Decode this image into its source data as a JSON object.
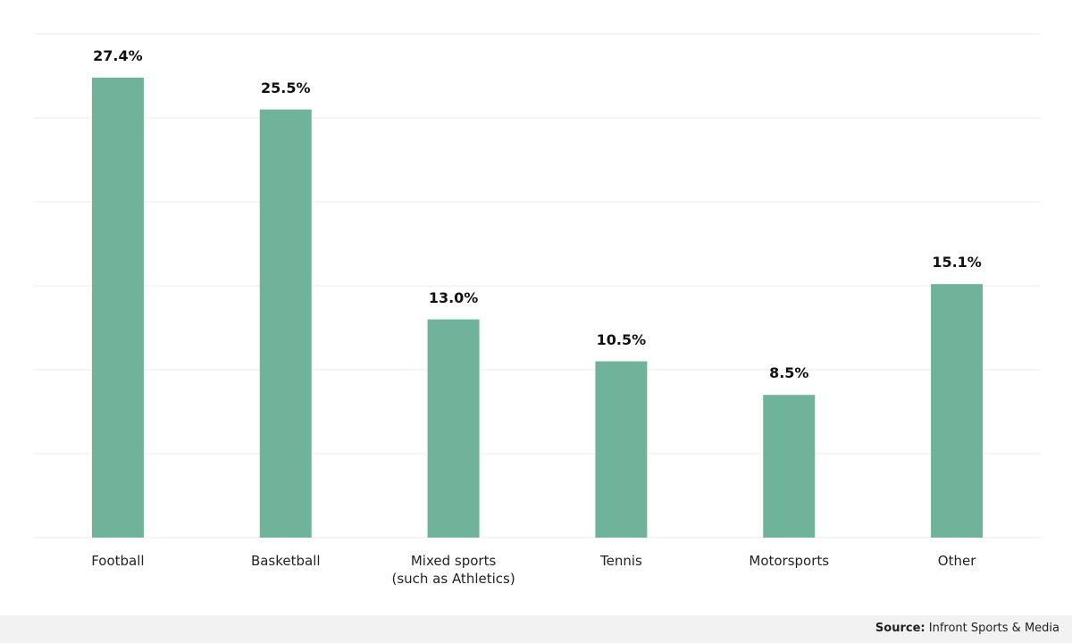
{
  "chart_data": {
    "type": "bar",
    "categories": [
      "Football",
      "Basketball",
      "Mixed sports\n(such as Athletics)",
      "Tennis",
      "Motorsports",
      "Other"
    ],
    "values": [
      27.4,
      25.5,
      13.0,
      10.5,
      8.5,
      15.1
    ],
    "value_labels": [
      "27.4%",
      "25.5%",
      "13.0%",
      "10.5%",
      "8.5%",
      "15.1%"
    ],
    "color": "#6fb39a",
    "ylim": [
      0,
      30
    ],
    "yticks": [
      0,
      5,
      10,
      15,
      20,
      25,
      30
    ],
    "grid": true
  },
  "source": {
    "label": "Source:",
    "text": "Infront Sports & Media"
  }
}
